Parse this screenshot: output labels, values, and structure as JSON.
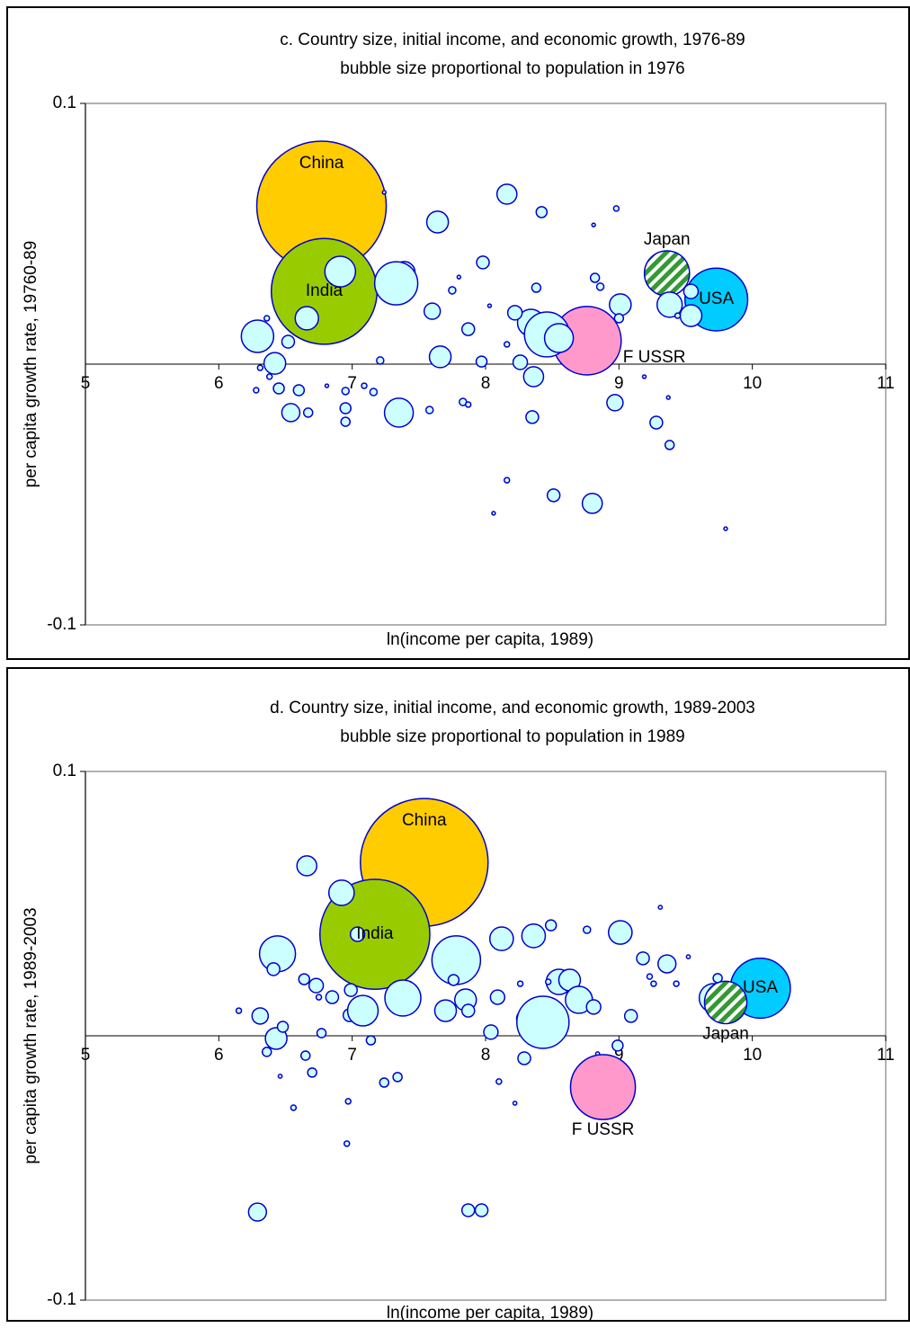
{
  "chart_data": [
    {
      "type": "bubble",
      "title": "c. Country size, initial income, and economic growth, 1976-89",
      "subtitle": "bubble size proportional to population in 1976",
      "xlabel": "ln(income per capita, 1989)",
      "ylabel": "per capita growth rate, 19760-89",
      "xlim": [
        5,
        11
      ],
      "xticks": [
        5,
        6,
        7,
        8,
        9,
        10,
        11
      ],
      "ylim": [
        -0.1,
        0.1
      ],
      "yticks": [
        -0.1,
        0.1
      ],
      "x_axis_crosses": 0,
      "bubble_color": "#ccffff",
      "edge_color": "#0000cc",
      "points": [
        {
          "x": 6.77,
          "y": 0.0607,
          "size": 930,
          "label": "China",
          "color": "#ffcc00",
          "label_position": "top"
        },
        {
          "x": 6.79,
          "y": 0.0279,
          "size": 620,
          "label": "India",
          "color": "#99cc00",
          "label_position": "center"
        },
        {
          "x": 8.76,
          "y": 0.009,
          "size": 260,
          "label": "F USSR",
          "color": "#ff99cc",
          "label_position": "right"
        },
        {
          "x": 9.73,
          "y": 0.0248,
          "size": 218,
          "label": "USA",
          "color": "#00ccff",
          "label_position": "center"
        },
        {
          "x": 9.36,
          "y": 0.0348,
          "size": 113,
          "label": "Japan",
          "color": "#339933",
          "pattern": "hatch",
          "label_position": "above"
        },
        {
          "x": 8.16,
          "y": 0.0652,
          "size": 22
        },
        {
          "x": 7.64,
          "y": 0.0545,
          "size": 26
        },
        {
          "x": 8.42,
          "y": 0.0583,
          "size": 6.5
        },
        {
          "x": 7.98,
          "y": 0.039,
          "size": 8.8
        },
        {
          "x": 6.91,
          "y": 0.0355,
          "size": 52
        },
        {
          "x": 7.39,
          "y": 0.0352,
          "size": 26
        },
        {
          "x": 7.33,
          "y": 0.031,
          "size": 103
        },
        {
          "x": 6.66,
          "y": 0.0176,
          "size": 30
        },
        {
          "x": 6.52,
          "y": 0.0086,
          "size": 8.8
        },
        {
          "x": 6.29,
          "y": 0.0107,
          "size": 58
        },
        {
          "x": 6.42,
          "y": 0.0003,
          "size": 26
        },
        {
          "x": 6.54,
          "y": -0.0186,
          "size": 18
        },
        {
          "x": 7.35,
          "y": -0.0186,
          "size": 46
        },
        {
          "x": 6.95,
          "y": -0.0169,
          "size": 6.5
        },
        {
          "x": 6.95,
          "y": -0.0221,
          "size": 4.5
        },
        {
          "x": 8.36,
          "y": -0.0048,
          "size": 22
        },
        {
          "x": 8.35,
          "y": -0.0203,
          "size": 8.8
        },
        {
          "x": 8.34,
          "y": 0.0159,
          "size": 40
        },
        {
          "x": 8.46,
          "y": 0.0114,
          "size": 112
        },
        {
          "x": 8.55,
          "y": 0.01,
          "size": 46
        },
        {
          "x": 8.22,
          "y": 0.0197,
          "size": 11.5
        },
        {
          "x": 8.26,
          "y": 0.0007,
          "size": 11.5
        },
        {
          "x": 7.66,
          "y": 0.0028,
          "size": 26
        },
        {
          "x": 7.6,
          "y": 0.0203,
          "size": 14.5
        },
        {
          "x": 7.87,
          "y": 0.0134,
          "size": 8.8
        },
        {
          "x": 8.97,
          "y": -0.0148,
          "size": 14.5
        },
        {
          "x": 9.01,
          "y": 0.0228,
          "size": 26
        },
        {
          "x": 9.38,
          "y": 0.0228,
          "size": 35
        },
        {
          "x": 9.54,
          "y": 0.0186,
          "size": 26
        },
        {
          "x": 9.54,
          "y": 0.0279,
          "size": 11.5
        },
        {
          "x": 9.28,
          "y": -0.0224,
          "size": 8.8
        },
        {
          "x": 9.38,
          "y": -0.031,
          "size": 4.5
        },
        {
          "x": 8.51,
          "y": -0.0503,
          "size": 8.8
        },
        {
          "x": 8.8,
          "y": -0.0534,
          "size": 22
        },
        {
          "x": 8.98,
          "y": 0.0597,
          "size": 1.6
        },
        {
          "x": 8.82,
          "y": 0.0331,
          "size": 4.5
        },
        {
          "x": 8.86,
          "y": 0.0297,
          "size": 2.9
        },
        {
          "x": 6.36,
          "y": 0.0176,
          "size": 1.6
        },
        {
          "x": 6.31,
          "y": -0.0014,
          "size": 1.6
        },
        {
          "x": 6.38,
          "y": -0.0048,
          "size": 1.6
        },
        {
          "x": 6.28,
          "y": -0.01,
          "size": 1.6
        },
        {
          "x": 6.45,
          "y": -0.0093,
          "size": 6.5
        },
        {
          "x": 6.6,
          "y": -0.01,
          "size": 6.5
        },
        {
          "x": 6.67,
          "y": -0.0186,
          "size": 4.5
        },
        {
          "x": 6.95,
          "y": -0.0103,
          "size": 2.9
        },
        {
          "x": 7.09,
          "y": -0.0083,
          "size": 1.6
        },
        {
          "x": 7.21,
          "y": 0.0014,
          "size": 2.9
        },
        {
          "x": 7.16,
          "y": -0.0107,
          "size": 2.9
        },
        {
          "x": 7.58,
          "y": -0.0176,
          "size": 2.9
        },
        {
          "x": 7.75,
          "y": 0.0283,
          "size": 2.9
        },
        {
          "x": 8.38,
          "y": 0.0293,
          "size": 4.5
        },
        {
          "x": 7.97,
          "y": 0.001,
          "size": 6.5
        },
        {
          "x": 7.83,
          "y": -0.0145,
          "size": 2.9
        },
        {
          "x": 7.87,
          "y": -0.0155,
          "size": 1.6
        },
        {
          "x": 9.0,
          "y": 0.0176,
          "size": 4.5
        },
        {
          "x": 9.44,
          "y": 0.0186,
          "size": 1.6
        },
        {
          "x": 8.16,
          "y": 0.0076,
          "size": 1.6
        },
        {
          "x": 7.24,
          "y": 0.0659,
          "size": 0.7
        },
        {
          "x": 8.16,
          "y": -0.0445,
          "size": 1.6
        },
        {
          "x": 8.06,
          "y": -0.0572,
          "size": 0.7
        },
        {
          "x": 9.8,
          "y": -0.0631,
          "size": 0.7
        },
        {
          "x": 8.81,
          "y": 0.0534,
          "size": 0.7
        },
        {
          "x": 7.8,
          "y": 0.0334,
          "size": 0.7
        },
        {
          "x": 8.03,
          "y": 0.0224,
          "size": 0.7
        },
        {
          "x": 9.19,
          "y": -0.0048,
          "size": 0.7
        },
        {
          "x": 9.37,
          "y": -0.0128,
          "size": 0.7
        },
        {
          "x": 6.81,
          "y": -0.0083,
          "size": 0.7
        }
      ]
    },
    {
      "type": "bubble",
      "title": "d. Country size, initial income, and economic growth, 1989-2003",
      "subtitle": "bubble size proportional to population in 1989",
      "xlabel": "ln(income per capita, 1989)",
      "ylabel": "per capita growth rate, 1989-2003",
      "xlim": [
        5,
        11
      ],
      "xticks": [
        5,
        6,
        7,
        8,
        9,
        10,
        11
      ],
      "ylim": [
        -0.1,
        0.1
      ],
      "yticks": [
        -0.1,
        0.1
      ],
      "x_axis_crosses": 0,
      "bubble_color": "#ccffff",
      "edge_color": "#0000cc",
      "points": [
        {
          "x": 7.54,
          "y": 0.0656,
          "size": 1120,
          "label": "China",
          "color": "#ffcc00",
          "label_position": "top"
        },
        {
          "x": 7.17,
          "y": 0.0384,
          "size": 830,
          "label": "India",
          "color": "#99cc00",
          "label_position": "center"
        },
        {
          "x": 6.66,
          "y": 0.0643,
          "size": 27
        },
        {
          "x": 6.92,
          "y": 0.0541,
          "size": 44
        },
        {
          "x": 6.44,
          "y": 0.031,
          "size": 89
        },
        {
          "x": 6.41,
          "y": 0.0252,
          "size": 11
        },
        {
          "x": 6.31,
          "y": 0.0075,
          "size": 18
        },
        {
          "x": 6.43,
          "y": -0.001,
          "size": 32
        },
        {
          "x": 6.36,
          "y": -0.0061,
          "size": 5.6
        },
        {
          "x": 6.48,
          "y": 0.0034,
          "size": 8
        },
        {
          "x": 6.64,
          "y": 0.0214,
          "size": 8
        },
        {
          "x": 6.73,
          "y": 0.019,
          "size": 14
        },
        {
          "x": 6.85,
          "y": 0.0146,
          "size": 11
        },
        {
          "x": 6.99,
          "y": 0.0173,
          "size": 11
        },
        {
          "x": 6.98,
          "y": 0.0078,
          "size": 11
        },
        {
          "x": 7.08,
          "y": 0.0095,
          "size": 64
        },
        {
          "x": 7.38,
          "y": 0.0143,
          "size": 89
        },
        {
          "x": 7.04,
          "y": 0.0384,
          "size": 14
        },
        {
          "x": 7.78,
          "y": 0.0286,
          "size": 162
        },
        {
          "x": 7.85,
          "y": 0.0136,
          "size": 32
        },
        {
          "x": 7.7,
          "y": 0.0095,
          "size": 32
        },
        {
          "x": 7.76,
          "y": 0.0211,
          "size": 8
        },
        {
          "x": 7.87,
          "y": 0.0095,
          "size": 11
        },
        {
          "x": 8.12,
          "y": 0.0367,
          "size": 38
        },
        {
          "x": 8.36,
          "y": 0.0378,
          "size": 38
        },
        {
          "x": 8.49,
          "y": 0.0418,
          "size": 8
        },
        {
          "x": 8.09,
          "y": 0.0146,
          "size": 14
        },
        {
          "x": 8.04,
          "y": 0.0014,
          "size": 14
        },
        {
          "x": 8.3,
          "y": 0.0065,
          "size": 22
        },
        {
          "x": 8.29,
          "y": -0.0085,
          "size": 11
        },
        {
          "x": 8.43,
          "y": 0.0051,
          "size": 187
        },
        {
          "x": 8.55,
          "y": 0.0204,
          "size": 44
        },
        {
          "x": 8.63,
          "y": 0.0211,
          "size": 32
        },
        {
          "x": 8.7,
          "y": 0.0136,
          "size": 50
        },
        {
          "x": 8.81,
          "y": 0.0109,
          "size": 14
        },
        {
          "x": 9.01,
          "y": 0.0391,
          "size": 38
        },
        {
          "x": 9.18,
          "y": 0.0293,
          "size": 11
        },
        {
          "x": 9.09,
          "y": 0.0075,
          "size": 11
        },
        {
          "x": 9.36,
          "y": 0.0272,
          "size": 22
        },
        {
          "x": 9.71,
          "y": 0.0143,
          "size": 57
        },
        {
          "x": 9.74,
          "y": 0.0218,
          "size": 5.6
        },
        {
          "x": 8.99,
          "y": -0.0037,
          "size": 8
        },
        {
          "x": 9.0,
          "y": -0.0109,
          "size": 3.6
        },
        {
          "x": 6.29,
          "y": -0.0667,
          "size": 22
        },
        {
          "x": 7.87,
          "y": -0.066,
          "size": 11
        },
        {
          "x": 7.97,
          "y": -0.066,
          "size": 11
        },
        {
          "x": 6.96,
          "y": -0.0408,
          "size": 2
        },
        {
          "x": 6.56,
          "y": -0.0272,
          "size": 2
        },
        {
          "x": 6.65,
          "y": -0.0075,
          "size": 5.6
        },
        {
          "x": 6.7,
          "y": -0.0139,
          "size": 5.6
        },
        {
          "x": 6.77,
          "y": 0.001,
          "size": 5.6
        },
        {
          "x": 7.14,
          "y": -0.0017,
          "size": 5.6
        },
        {
          "x": 7.34,
          "y": -0.0156,
          "size": 5.6
        },
        {
          "x": 7.24,
          "y": -0.0177,
          "size": 5.6
        },
        {
          "x": 6.97,
          "y": -0.0248,
          "size": 2
        },
        {
          "x": 6.15,
          "y": 0.0095,
          "size": 2
        },
        {
          "x": 9.31,
          "y": 0.0486,
          "size": 1
        },
        {
          "x": 8.76,
          "y": 0.0401,
          "size": 3.6
        },
        {
          "x": 8.47,
          "y": 0.0204,
          "size": 2
        },
        {
          "x": 8.26,
          "y": 0.0197,
          "size": 2
        },
        {
          "x": 8.1,
          "y": -0.0173,
          "size": 2
        },
        {
          "x": 8.22,
          "y": -0.0255,
          "size": 1
        },
        {
          "x": 9.52,
          "y": 0.0299,
          "size": 1
        },
        {
          "x": 9.43,
          "y": 0.0197,
          "size": 2
        },
        {
          "x": 9.23,
          "y": 0.0224,
          "size": 2
        },
        {
          "x": 9.26,
          "y": 0.0197,
          "size": 2
        },
        {
          "x": 8.84,
          "y": -0.0068,
          "size": 1
        },
        {
          "x": 6.46,
          "y": -0.0153,
          "size": 1
        },
        {
          "x": 6.75,
          "y": 0.0146,
          "size": 2
        },
        {
          "x": 8.88,
          "y": -0.0194,
          "size": 289,
          "label": "F USSR",
          "color": "#ff99cc",
          "label_position": "below"
        },
        {
          "x": 10.06,
          "y": 0.018,
          "size": 247,
          "label": "USA",
          "color": "#00ccff",
          "label_position": "center"
        },
        {
          "x": 9.8,
          "y": 0.0126,
          "size": 123,
          "label": "Japan",
          "color": "#339933",
          "pattern": "hatch",
          "label_position": "below"
        }
      ]
    }
  ]
}
